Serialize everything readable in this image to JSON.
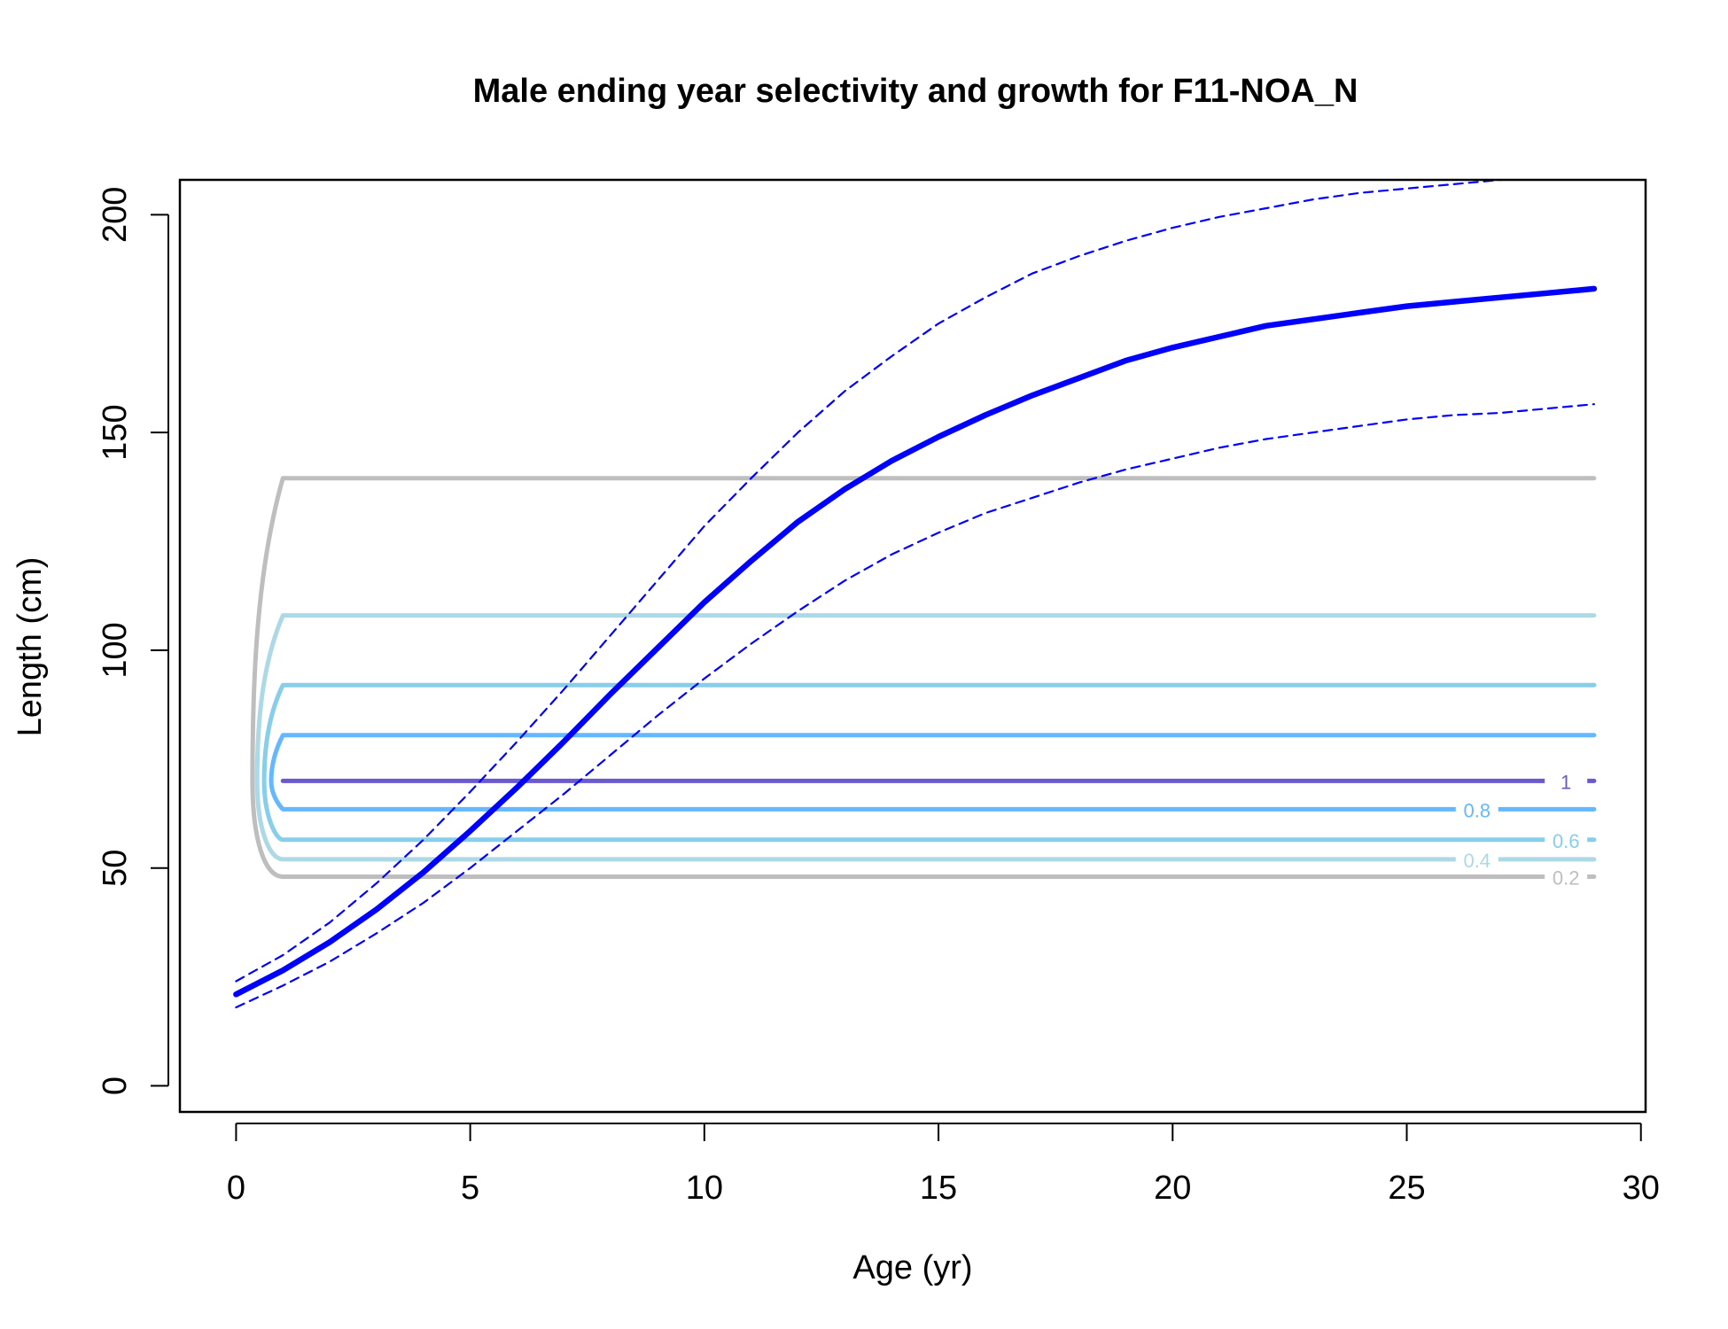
{
  "chart_data": {
    "type": "line",
    "title": "Male ending year selectivity and growth for F11-NOA_N",
    "xlabel": "Age (yr)",
    "ylabel": "Length (cm)",
    "xlim": [
      -1.2,
      30.1
    ],
    "ylim": [
      -6,
      208
    ],
    "x_ticks": [
      0,
      5,
      10,
      15,
      20,
      25,
      30
    ],
    "y_ticks": [
      0,
      50,
      100,
      150,
      200
    ],
    "x_tick_labels": [
      "0",
      "5",
      "10",
      "15",
      "20",
      "25",
      "30"
    ],
    "y_tick_labels": [
      "0",
      "50",
      "100",
      "150",
      "200"
    ],
    "grid": false,
    "series": [
      {
        "style": "mean",
        "color": "#0000ff",
        "x": [
          0,
          1,
          2,
          3,
          4,
          5,
          6,
          7,
          8,
          9,
          10,
          11,
          12,
          13,
          14,
          15,
          16,
          17,
          18,
          19,
          20,
          21,
          22,
          23,
          24,
          25,
          26,
          27,
          28,
          29
        ],
        "y": [
          21,
          26.5,
          33,
          40.5,
          49,
          58.5,
          68.5,
          79,
          90,
          100.5,
          111,
          120.5,
          129.5,
          137,
          143.5,
          149,
          154,
          158.5,
          162.5,
          166.5,
          169.5,
          172,
          174.5,
          176,
          177.5,
          179,
          180,
          181,
          182,
          183
        ]
      },
      {
        "style": "upper-interval",
        "color": "#0000ff",
        "x": [
          0,
          1,
          2,
          3,
          4,
          5,
          6,
          7,
          8,
          9,
          10,
          11,
          12,
          13,
          14,
          15,
          16,
          17,
          18,
          19,
          20,
          21,
          22,
          23,
          24,
          25,
          26,
          27,
          28,
          29
        ],
        "y": [
          24,
          30,
          37.5,
          46.5,
          56.5,
          67.5,
          79,
          91,
          103.5,
          116,
          128.5,
          139.5,
          150,
          159.5,
          167.5,
          175,
          181,
          186.5,
          190.5,
          194,
          197,
          199.5,
          201.5,
          203.5,
          205,
          206,
          207,
          208,
          208.5,
          209
        ]
      },
      {
        "style": "lower-interval",
        "color": "#0000ff",
        "x": [
          0,
          1,
          2,
          3,
          4,
          5,
          6,
          7,
          8,
          9,
          10,
          11,
          12,
          13,
          14,
          15,
          16,
          17,
          18,
          19,
          20,
          21,
          22,
          23,
          24,
          25,
          26,
          27,
          28,
          29
        ],
        "y": [
          18,
          23,
          28.5,
          35,
          42,
          50,
          58.5,
          67,
          76,
          85,
          93.5,
          101.5,
          109,
          116,
          122,
          127,
          131.5,
          135,
          138.5,
          141.5,
          144,
          146.5,
          148.5,
          150,
          151.5,
          153,
          154,
          154.5,
          155.5,
          156.5
        ]
      }
    ],
    "contours": [
      {
        "level": "0.2",
        "label": "0.2",
        "color": "#bebebe",
        "y_low": 48,
        "y_high": 139.5,
        "x_left": 0.35
      },
      {
        "level": "0.4",
        "label": "0.4",
        "color": "#add8e6",
        "y_low": 52,
        "y_high": 108,
        "x_left": 0.45
      },
      {
        "level": "0.6",
        "label": "0.6",
        "color": "#87ceeb",
        "y_low": 56.5,
        "y_high": 92,
        "x_left": 0.6
      },
      {
        "level": "0.8",
        "label": "0.8",
        "color": "#63b8ff",
        "y_low": 63.5,
        "y_high": 80.5,
        "x_left": 0.75
      },
      {
        "level": "1",
        "label": "1",
        "color": "#6a5acd",
        "y_low": 70,
        "y_high": 70,
        "x_left": 1
      }
    ]
  }
}
